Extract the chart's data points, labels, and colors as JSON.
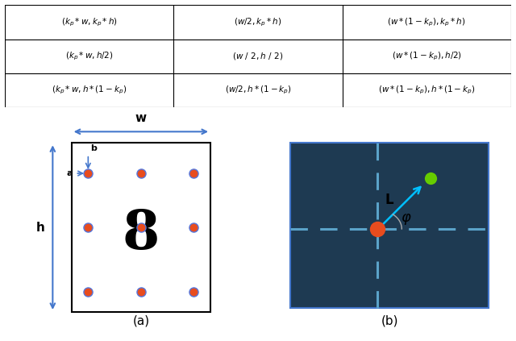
{
  "cell_texts": [
    [
      "$(\\boldsymbol{k_p}*w,\\boldsymbol{k_p}*h)$",
      "$(w/2,\\boldsymbol{k_p}*h)$",
      "$(w*(1-k_p),\\boldsymbol{k_p}*h)$"
    ],
    [
      "$(\\boldsymbol{k_p}*w,h/2)$",
      "$(w\\ /\\ 2,h\\ /\\ 2)$",
      "$(w*(1-\\boldsymbol{k_p}),h/2)$"
    ],
    [
      "$(k_p*w,h*(1-\\boldsymbol{k_p})$",
      "$(w/2,h*(1-\\boldsymbol{k_p})$",
      "$(w*(1-\\boldsymbol{k_p}),h*(1-\\boldsymbol{k_p})$"
    ]
  ],
  "dot_color": "#E84C1E",
  "dot_edge_color": "#5577DD",
  "green_dot_color": "#66CC00",
  "bg_color": "#1E3A52",
  "dashed_color": "#5BA3C9",
  "arrow_color": "#00BFFF",
  "blue_color": "#4477CC",
  "caption_a": "(a)",
  "caption_b": "(b)"
}
